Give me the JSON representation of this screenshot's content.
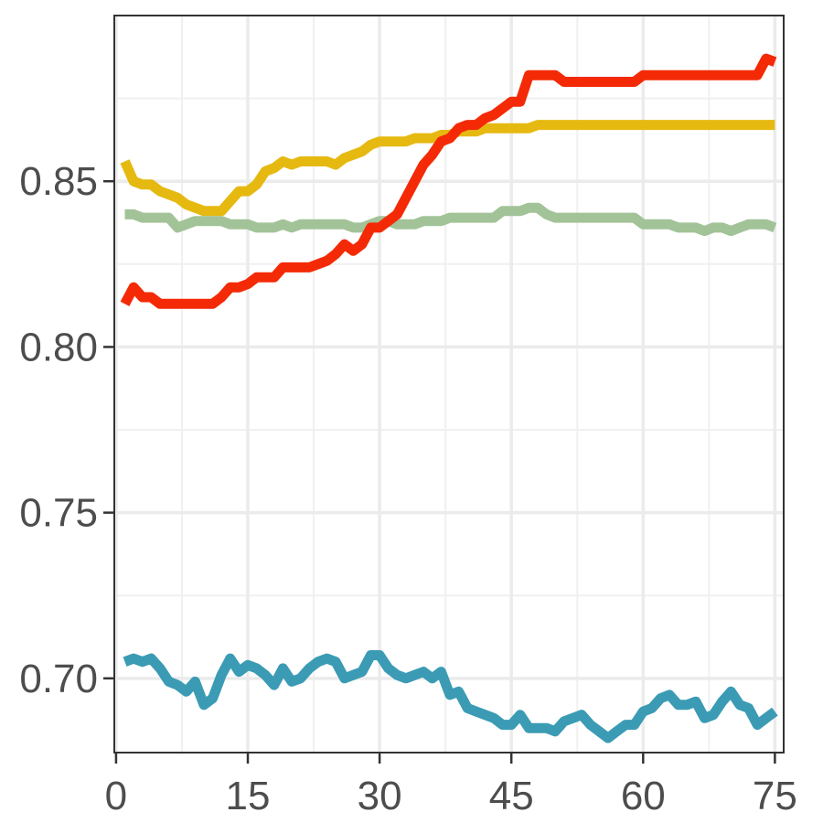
{
  "chart_data": {
    "type": "line",
    "title": "",
    "xlabel": "",
    "ylabel": "",
    "xlim": [
      -0.2,
      76
    ],
    "ylim": [
      0.6776,
      0.9
    ],
    "grid": true,
    "legend": "none",
    "x_ticks": [
      0,
      15,
      30,
      45,
      60,
      75
    ],
    "x_tick_labels": [
      "0",
      "15",
      "30",
      "45",
      "60",
      "75"
    ],
    "y_ticks": [
      0.7,
      0.75,
      0.8,
      0.85
    ],
    "y_tick_labels": [
      "0.70",
      "0.75",
      "0.80",
      "0.85"
    ],
    "series": [
      {
        "color": "#e6b911",
        "points": [
          [
            1,
            0.856
          ],
          [
            2,
            0.85
          ],
          [
            3,
            0.849
          ],
          [
            4,
            0.849
          ],
          [
            5,
            0.847
          ],
          [
            6,
            0.846
          ],
          [
            7,
            0.845
          ],
          [
            8,
            0.843
          ],
          [
            9,
            0.842
          ],
          [
            10,
            0.841
          ],
          [
            11,
            0.841
          ],
          [
            12,
            0.841
          ],
          [
            13,
            0.844
          ],
          [
            14,
            0.847
          ],
          [
            15,
            0.847
          ],
          [
            16,
            0.849
          ],
          [
            17,
            0.853
          ],
          [
            18,
            0.854
          ],
          [
            19,
            0.856
          ],
          [
            20,
            0.855
          ],
          [
            21,
            0.856
          ],
          [
            22,
            0.856
          ],
          [
            23,
            0.856
          ],
          [
            24,
            0.856
          ],
          [
            25,
            0.855
          ],
          [
            26,
            0.857
          ],
          [
            27,
            0.858
          ],
          [
            28,
            0.859
          ],
          [
            29,
            0.861
          ],
          [
            30,
            0.862
          ],
          [
            31,
            0.862
          ],
          [
            32,
            0.862
          ],
          [
            33,
            0.862
          ],
          [
            34,
            0.863
          ],
          [
            35,
            0.863
          ],
          [
            36,
            0.863
          ],
          [
            37,
            0.864
          ],
          [
            38,
            0.864
          ],
          [
            39,
            0.865
          ],
          [
            40,
            0.865
          ],
          [
            41,
            0.865
          ],
          [
            42,
            0.866
          ],
          [
            43,
            0.866
          ],
          [
            44,
            0.866
          ],
          [
            45,
            0.866
          ],
          [
            46,
            0.866
          ],
          [
            47,
            0.866
          ],
          [
            48,
            0.867
          ],
          [
            75,
            0.867
          ]
        ]
      },
      {
        "color": "#a2c398",
        "points": [
          [
            1,
            0.84
          ],
          [
            2,
            0.84
          ],
          [
            3,
            0.839
          ],
          [
            4,
            0.839
          ],
          [
            5,
            0.839
          ],
          [
            6,
            0.839
          ],
          [
            7,
            0.836
          ],
          [
            8,
            0.837
          ],
          [
            9,
            0.838
          ],
          [
            10,
            0.838
          ],
          [
            11,
            0.838
          ],
          [
            12,
            0.838
          ],
          [
            13,
            0.837
          ],
          [
            14,
            0.837
          ],
          [
            15,
            0.837
          ],
          [
            16,
            0.836
          ],
          [
            17,
            0.836
          ],
          [
            18,
            0.836
          ],
          [
            19,
            0.837
          ],
          [
            20,
            0.836
          ],
          [
            21,
            0.837
          ],
          [
            22,
            0.837
          ],
          [
            23,
            0.837
          ],
          [
            24,
            0.837
          ],
          [
            25,
            0.837
          ],
          [
            26,
            0.837
          ],
          [
            27,
            0.836
          ],
          [
            28,
            0.836
          ],
          [
            29,
            0.837
          ],
          [
            30,
            0.838
          ],
          [
            31,
            0.838
          ],
          [
            32,
            0.837
          ],
          [
            33,
            0.837
          ],
          [
            34,
            0.837
          ],
          [
            35,
            0.838
          ],
          [
            36,
            0.838
          ],
          [
            37,
            0.838
          ],
          [
            38,
            0.839
          ],
          [
            39,
            0.839
          ],
          [
            40,
            0.839
          ],
          [
            41,
            0.839
          ],
          [
            42,
            0.839
          ],
          [
            43,
            0.839
          ],
          [
            44,
            0.841
          ],
          [
            45,
            0.841
          ],
          [
            46,
            0.841
          ],
          [
            47,
            0.842
          ],
          [
            48,
            0.842
          ],
          [
            49,
            0.84
          ],
          [
            50,
            0.839
          ],
          [
            51,
            0.839
          ],
          [
            52,
            0.839
          ],
          [
            53,
            0.839
          ],
          [
            54,
            0.839
          ],
          [
            55,
            0.839
          ],
          [
            56,
            0.839
          ],
          [
            57,
            0.839
          ],
          [
            58,
            0.839
          ],
          [
            59,
            0.839
          ],
          [
            60,
            0.837
          ],
          [
            61,
            0.837
          ],
          [
            62,
            0.837
          ],
          [
            63,
            0.837
          ],
          [
            64,
            0.836
          ],
          [
            65,
            0.836
          ],
          [
            66,
            0.836
          ],
          [
            67,
            0.835
          ],
          [
            68,
            0.836
          ],
          [
            69,
            0.836
          ],
          [
            70,
            0.835
          ],
          [
            71,
            0.836
          ],
          [
            72,
            0.837
          ],
          [
            73,
            0.837
          ],
          [
            74,
            0.837
          ],
          [
            75,
            0.836
          ]
        ]
      },
      {
        "color": "#f42a07",
        "points": [
          [
            1,
            0.813
          ],
          [
            2,
            0.818
          ],
          [
            3,
            0.815
          ],
          [
            4,
            0.815
          ],
          [
            5,
            0.813
          ],
          [
            6,
            0.813
          ],
          [
            7,
            0.813
          ],
          [
            8,
            0.813
          ],
          [
            9,
            0.813
          ],
          [
            10,
            0.813
          ],
          [
            11,
            0.813
          ],
          [
            12,
            0.815
          ],
          [
            13,
            0.818
          ],
          [
            14,
            0.818
          ],
          [
            15,
            0.819
          ],
          [
            16,
            0.821
          ],
          [
            17,
            0.821
          ],
          [
            18,
            0.821
          ],
          [
            19,
            0.824
          ],
          [
            20,
            0.824
          ],
          [
            21,
            0.824
          ],
          [
            22,
            0.824
          ],
          [
            23,
            0.825
          ],
          [
            24,
            0.826
          ],
          [
            25,
            0.828
          ],
          [
            26,
            0.831
          ],
          [
            27,
            0.829
          ],
          [
            28,
            0.831
          ],
          [
            29,
            0.836
          ],
          [
            30,
            0.836
          ],
          [
            31,
            0.838
          ],
          [
            32,
            0.84
          ],
          [
            33,
            0.845
          ],
          [
            34,
            0.85
          ],
          [
            35,
            0.855
          ],
          [
            36,
            0.858
          ],
          [
            37,
            0.862
          ],
          [
            38,
            0.863
          ],
          [
            39,
            0.866
          ],
          [
            40,
            0.867
          ],
          [
            41,
            0.867
          ],
          [
            42,
            0.869
          ],
          [
            43,
            0.87
          ],
          [
            44,
            0.872
          ],
          [
            45,
            0.874
          ],
          [
            46,
            0.874
          ],
          [
            47,
            0.882
          ],
          [
            48,
            0.882
          ],
          [
            49,
            0.882
          ],
          [
            50,
            0.882
          ],
          [
            51,
            0.88
          ],
          [
            52,
            0.88
          ],
          [
            53,
            0.88
          ],
          [
            54,
            0.88
          ],
          [
            55,
            0.88
          ],
          [
            56,
            0.88
          ],
          [
            57,
            0.88
          ],
          [
            58,
            0.88
          ],
          [
            59,
            0.88
          ],
          [
            60,
            0.882
          ],
          [
            61,
            0.882
          ],
          [
            62,
            0.882
          ],
          [
            63,
            0.882
          ],
          [
            64,
            0.882
          ],
          [
            65,
            0.882
          ],
          [
            66,
            0.882
          ],
          [
            67,
            0.882
          ],
          [
            68,
            0.882
          ],
          [
            69,
            0.882
          ],
          [
            70,
            0.882
          ],
          [
            71,
            0.882
          ],
          [
            72,
            0.882
          ],
          [
            73,
            0.882
          ],
          [
            74,
            0.887
          ],
          [
            75,
            0.886
          ]
        ]
      },
      {
        "color": "#3b9bb4",
        "points": [
          [
            1,
            0.705
          ],
          [
            2,
            0.706
          ],
          [
            3,
            0.705
          ],
          [
            4,
            0.706
          ],
          [
            5,
            0.703
          ],
          [
            6,
            0.699
          ],
          [
            7,
            0.698
          ],
          [
            8,
            0.696
          ],
          [
            9,
            0.699
          ],
          [
            10,
            0.692
          ],
          [
            11,
            0.694
          ],
          [
            12,
            0.701
          ],
          [
            13,
            0.706
          ],
          [
            14,
            0.702
          ],
          [
            15,
            0.704
          ],
          [
            16,
            0.703
          ],
          [
            17,
            0.701
          ],
          [
            18,
            0.698
          ],
          [
            19,
            0.703
          ],
          [
            20,
            0.699
          ],
          [
            21,
            0.7
          ],
          [
            22,
            0.703
          ],
          [
            23,
            0.705
          ],
          [
            24,
            0.706
          ],
          [
            25,
            0.705
          ],
          [
            26,
            0.7
          ],
          [
            27,
            0.701
          ],
          [
            28,
            0.702
          ],
          [
            29,
            0.707
          ],
          [
            30,
            0.707
          ],
          [
            31,
            0.703
          ],
          [
            32,
            0.701
          ],
          [
            33,
            0.7
          ],
          [
            34,
            0.701
          ],
          [
            35,
            0.702
          ],
          [
            36,
            0.7
          ],
          [
            37,
            0.702
          ],
          [
            38,
            0.695
          ],
          [
            39,
            0.696
          ],
          [
            40,
            0.691
          ],
          [
            41,
            0.69
          ],
          [
            42,
            0.689
          ],
          [
            43,
            0.688
          ],
          [
            44,
            0.686
          ],
          [
            45,
            0.686
          ],
          [
            46,
            0.689
          ],
          [
            47,
            0.685
          ],
          [
            48,
            0.685
          ],
          [
            49,
            0.685
          ],
          [
            50,
            0.684
          ],
          [
            51,
            0.687
          ],
          [
            52,
            0.688
          ],
          [
            53,
            0.689
          ],
          [
            54,
            0.686
          ],
          [
            55,
            0.684
          ],
          [
            56,
            0.682
          ],
          [
            57,
            0.684
          ],
          [
            58,
            0.686
          ],
          [
            59,
            0.686
          ],
          [
            60,
            0.69
          ],
          [
            61,
            0.691
          ],
          [
            62,
            0.694
          ],
          [
            63,
            0.695
          ],
          [
            64,
            0.692
          ],
          [
            65,
            0.692
          ],
          [
            66,
            0.693
          ],
          [
            67,
            0.688
          ],
          [
            68,
            0.689
          ],
          [
            69,
            0.693
          ],
          [
            70,
            0.696
          ],
          [
            71,
            0.692
          ],
          [
            72,
            0.691
          ],
          [
            73,
            0.686
          ],
          [
            74,
            0.688
          ],
          [
            75,
            0.69
          ]
        ]
      }
    ]
  }
}
